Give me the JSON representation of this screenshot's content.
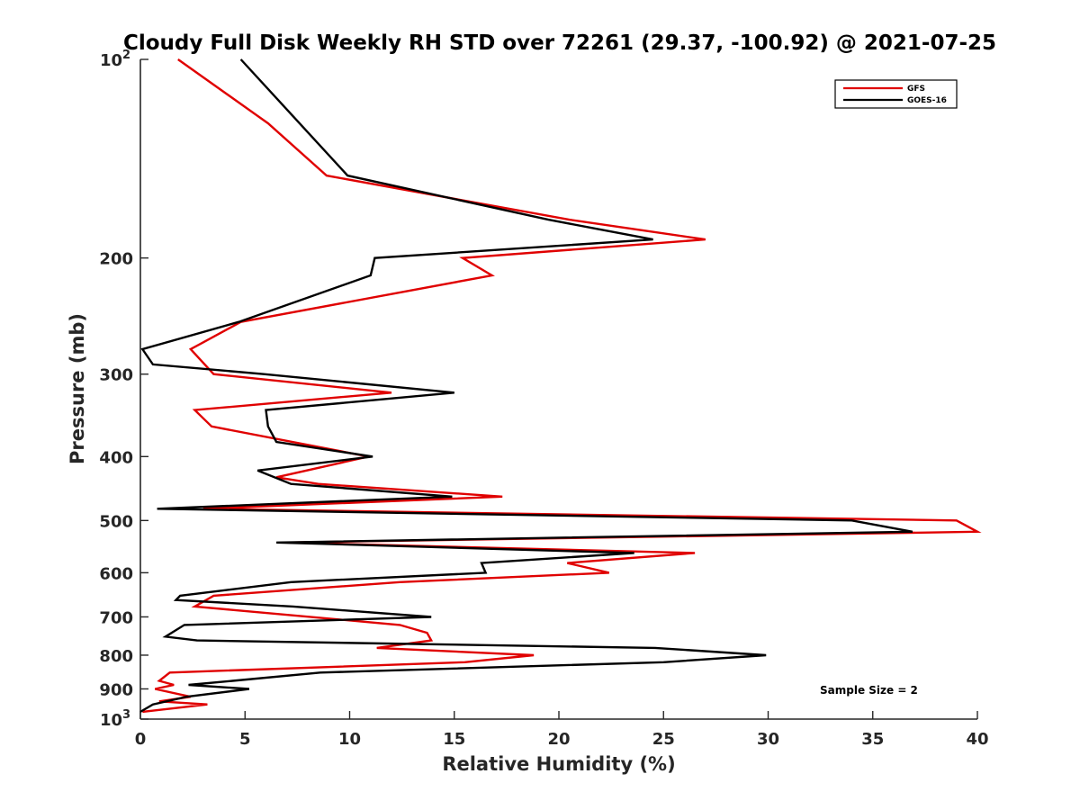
{
  "chart_data": {
    "type": "line",
    "title": "Cloudy Full Disk Weekly RH STD over 72261 (29.37, -100.92) @ 2021-07-25",
    "xlabel": "Relative Humidity (%)",
    "ylabel": "Pressure (mb)",
    "xlim": [
      0,
      40
    ],
    "ylim": [
      100,
      1000
    ],
    "y_scale": "log",
    "y_reversed": true,
    "grid": false,
    "legend_position": "top-right",
    "x_ticks": [
      "0",
      "5",
      "10",
      "15",
      "20",
      "25",
      "30",
      "35",
      "40"
    ],
    "y_ticks": [
      {
        "value": 100,
        "base": "10",
        "exp": "2"
      },
      {
        "value": 200,
        "label": "200"
      },
      {
        "value": 300,
        "label": "300"
      },
      {
        "value": 400,
        "label": "400"
      },
      {
        "value": 500,
        "label": "500"
      },
      {
        "value": 600,
        "label": "600"
      },
      {
        "value": 700,
        "label": "700"
      },
      {
        "value": 800,
        "label": "800"
      },
      {
        "value": 900,
        "label": "900"
      },
      {
        "value": 1000,
        "base": "10",
        "exp": "3"
      }
    ],
    "annotation": "Sample Size = 2",
    "series": [
      {
        "name": "GFS",
        "color": "#e00000",
        "points": [
          [
            1.8,
            100
          ],
          [
            6.1,
            125
          ],
          [
            8.9,
            150
          ],
          [
            20.5,
            175
          ],
          [
            27.0,
            187.5
          ],
          [
            15.4,
            200
          ],
          [
            16.8,
            212.5
          ],
          [
            4.8,
            250
          ],
          [
            2.4,
            275
          ],
          [
            3.5,
            300
          ],
          [
            12.0,
            320
          ],
          [
            2.6,
            340
          ],
          [
            3.4,
            360
          ],
          [
            10.9,
            400
          ],
          [
            6.5,
            430
          ],
          [
            8.5,
            440
          ],
          [
            17.3,
            460
          ],
          [
            3.0,
            480
          ],
          [
            39.0,
            500
          ],
          [
            40.0,
            520
          ],
          [
            7.0,
            540
          ],
          [
            26.5,
            560
          ],
          [
            20.4,
            580
          ],
          [
            22.4,
            600
          ],
          [
            12.4,
            620
          ],
          [
            3.5,
            650
          ],
          [
            2.6,
            675
          ],
          [
            12.4,
            720
          ],
          [
            13.7,
            740
          ],
          [
            13.9,
            760
          ],
          [
            11.3,
            780
          ],
          [
            18.8,
            800
          ],
          [
            15.5,
            820
          ],
          [
            1.4,
            850
          ],
          [
            0.9,
            875
          ],
          [
            1.6,
            887.5
          ],
          [
            0.7,
            900
          ],
          [
            2.4,
            925
          ],
          [
            0.9,
            940
          ],
          [
            3.2,
            950
          ],
          [
            0.1,
            975
          ]
        ]
      },
      {
        "name": "GOES-16",
        "color": "#000000",
        "points": [
          [
            4.8,
            100
          ],
          [
            9.9,
            150
          ],
          [
            19.5,
            175
          ],
          [
            24.5,
            187.5
          ],
          [
            11.2,
            200
          ],
          [
            11.0,
            212.5
          ],
          [
            4.7,
            250
          ],
          [
            0.1,
            275
          ],
          [
            0.6,
            290
          ],
          [
            5.9,
            300
          ],
          [
            15.0,
            320
          ],
          [
            6.0,
            340
          ],
          [
            6.1,
            360
          ],
          [
            6.5,
            380
          ],
          [
            11.1,
            400
          ],
          [
            5.6,
            420
          ],
          [
            7.2,
            440
          ],
          [
            14.9,
            460
          ],
          [
            0.8,
            480
          ],
          [
            34.0,
            500
          ],
          [
            36.9,
            520
          ],
          [
            6.5,
            540
          ],
          [
            23.6,
            560
          ],
          [
            16.3,
            580
          ],
          [
            16.5,
            600
          ],
          [
            7.2,
            620
          ],
          [
            1.9,
            650
          ],
          [
            1.7,
            660
          ],
          [
            7.3,
            675
          ],
          [
            13.9,
            700
          ],
          [
            2.1,
            720
          ],
          [
            1.2,
            750
          ],
          [
            2.7,
            760
          ],
          [
            24.6,
            780
          ],
          [
            29.9,
            800
          ],
          [
            25.0,
            820
          ],
          [
            8.6,
            850
          ],
          [
            4.4,
            875
          ],
          [
            2.3,
            887.5
          ],
          [
            5.2,
            900
          ],
          [
            2.2,
            925
          ],
          [
            0.6,
            950
          ],
          [
            0.0,
            975
          ]
        ]
      }
    ]
  }
}
